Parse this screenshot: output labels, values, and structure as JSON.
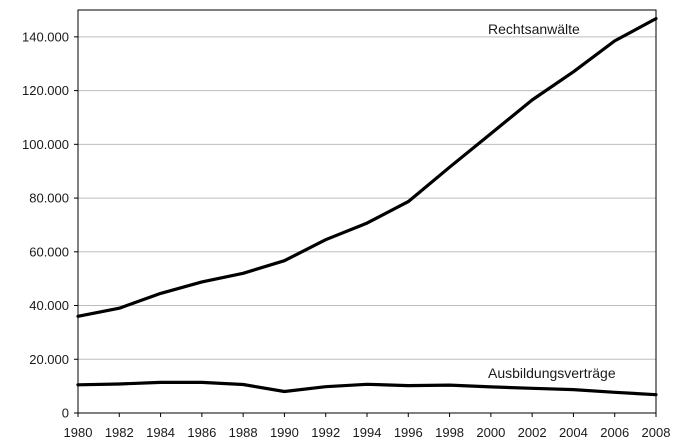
{
  "chart_data": {
    "type": "line",
    "title": "",
    "xlabel": "",
    "ylabel": "",
    "x": [
      1980,
      1982,
      1984,
      1986,
      1988,
      1990,
      1992,
      1994,
      1996,
      1998,
      2000,
      2002,
      2004,
      2006,
      2008
    ],
    "x_tick_labels": [
      "1980",
      "1982",
      "1984",
      "1986",
      "1988",
      "1990",
      "1992",
      "1994",
      "1996",
      "1998",
      "2000",
      "2002",
      "2004",
      "2006",
      "2008"
    ],
    "ylim": [
      0,
      150000
    ],
    "y_ticks": [
      0,
      20000,
      40000,
      60000,
      80000,
      100000,
      120000,
      140000
    ],
    "y_tick_labels": [
      "0",
      "20.000",
      "40.000",
      "60.000",
      "80.000",
      "100.000",
      "120.000",
      "140.000"
    ],
    "grid": "horizontal",
    "legend": "none",
    "series": [
      {
        "name": "Rechtsanwälte",
        "color": "#000000",
        "values": [
          36000,
          39000,
          44500,
          48800,
          52000,
          56700,
          64500,
          70700,
          78700,
          91500,
          104000,
          116500,
          127000,
          138500,
          146800
        ]
      },
      {
        "name": "Ausbildungsverträge",
        "color": "#000000",
        "values": [
          10500,
          10800,
          11400,
          11400,
          10600,
          8000,
          9800,
          10700,
          10200,
          10400,
          9700,
          9200,
          8700,
          7700,
          6800
        ]
      }
    ]
  }
}
